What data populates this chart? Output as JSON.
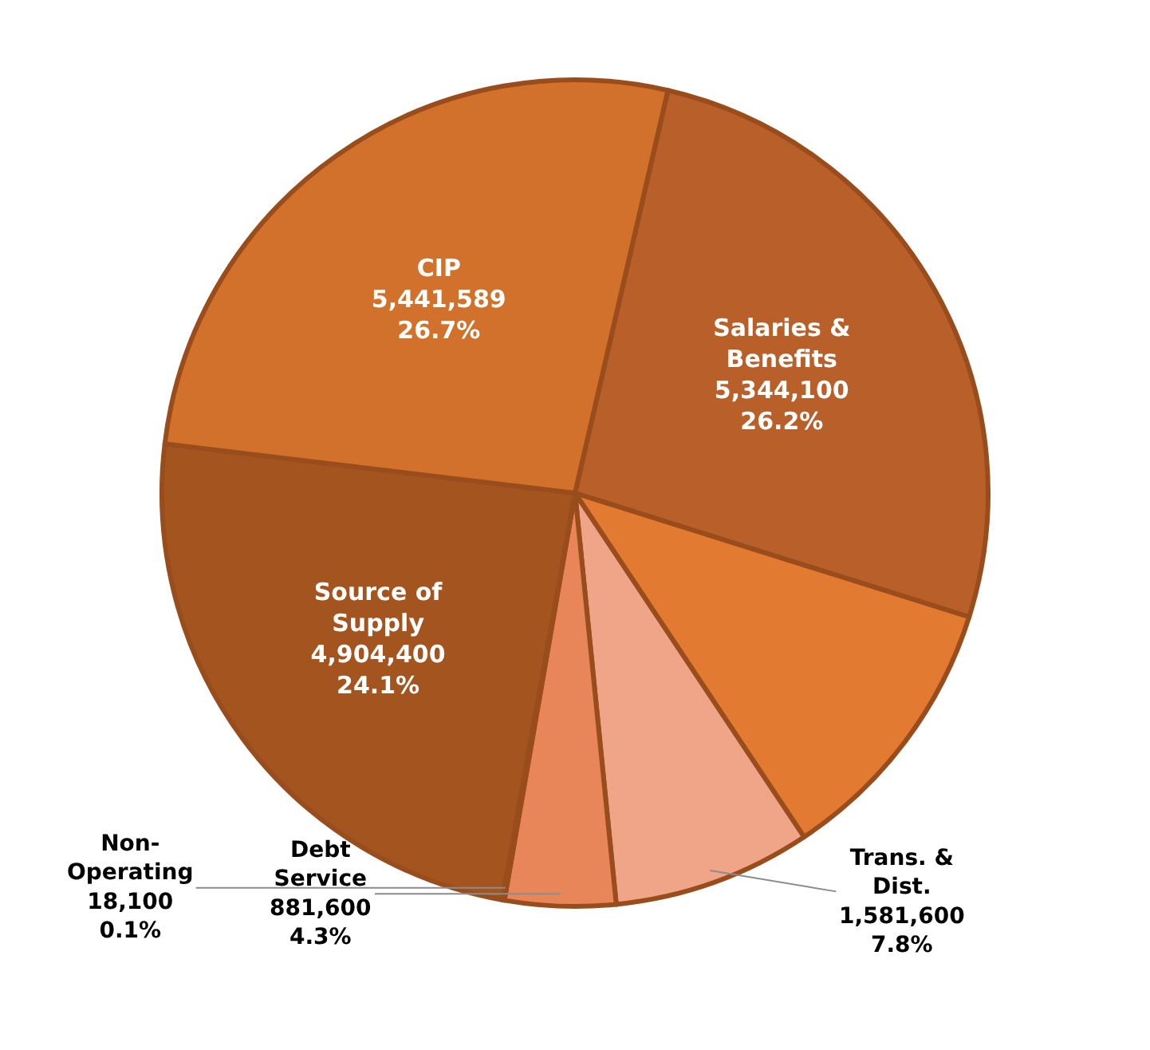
{
  "chart_data": {
    "type": "pie",
    "categories": [
      "Salaries &\nBenefits",
      null,
      "Trans. &\nDist.",
      "Debt\nService",
      "Non-\nOperating",
      "Source of\nSupply",
      "CIP"
    ],
    "values": [
      5344100,
      2200000,
      1581600,
      881600,
      18100,
      4904400,
      5441589
    ],
    "value_labels": [
      "5,344,100\n26.2%",
      null,
      "1,581,600\n7.8%",
      "881,600\n4.3%",
      "18,100\n0.1%",
      "4,904,400\n24.1%",
      "5,441,589\n26.7%"
    ],
    "colors": [
      "#b9602a",
      "#e27a32",
      "#f0a588",
      "#e8865a",
      "#c8703a",
      "#a4541f",
      "#d2712b"
    ],
    "legend": false
  }
}
